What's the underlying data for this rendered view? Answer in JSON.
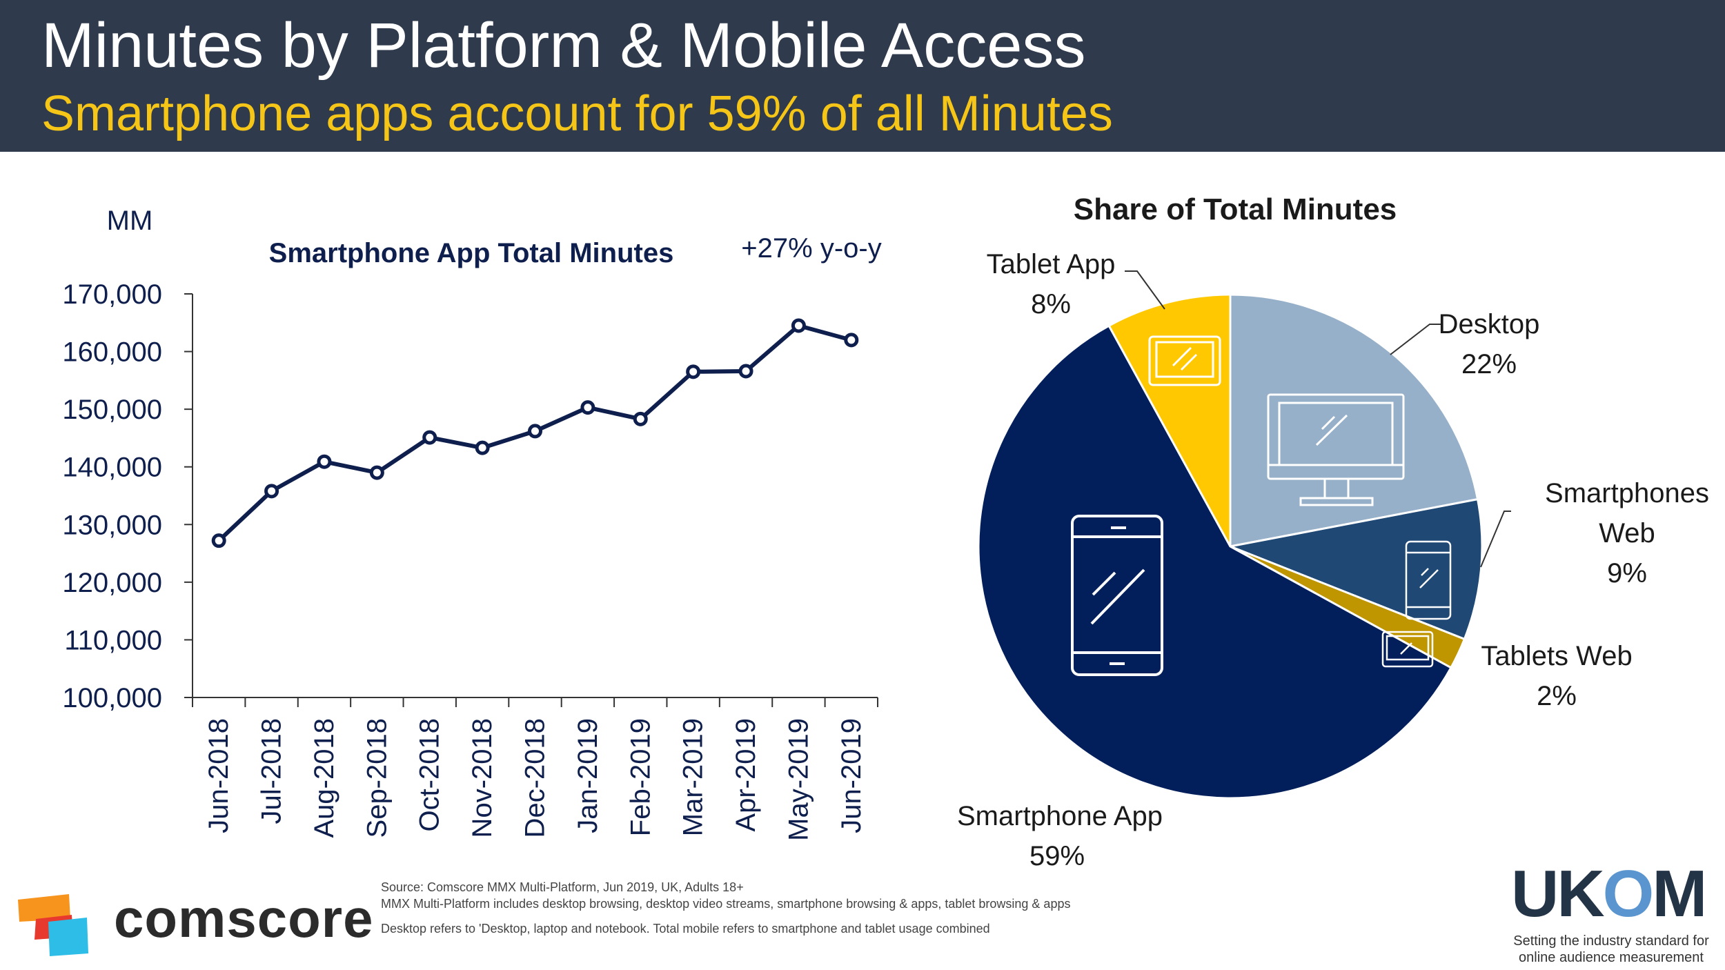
{
  "header": {
    "title": "Minutes by Platform & Mobile Access",
    "subtitle": "Smartphone apps account for 59% of all Minutes"
  },
  "line_chart": {
    "unit_label": "MM",
    "title": "Smartphone App Total Minutes",
    "growth_label": "+27% y-o-y"
  },
  "pie_chart": {
    "title": "Share of Total Minutes"
  },
  "chart_data": [
    {
      "type": "line",
      "title": "Smartphone App Total Minutes",
      "ylabel": "MM",
      "ylim": [
        100000,
        170000
      ],
      "yticks": [
        100000,
        110000,
        120000,
        130000,
        140000,
        150000,
        160000,
        170000
      ],
      "ytick_labels": [
        "100,000",
        "110,000",
        "120,000",
        "130,000",
        "140,000",
        "150,000",
        "160,000",
        "170,000"
      ],
      "categories": [
        "Jun-2018",
        "Jul-2018",
        "Aug-2018",
        "Sep-2018",
        "Oct-2018",
        "Nov-2018",
        "Dec-2018",
        "Jan-2019",
        "Feb-2019",
        "Mar-2019",
        "Apr-2019",
        "May-2019",
        "Jun-2019"
      ],
      "values": [
        127200,
        135800,
        140900,
        139000,
        145100,
        143300,
        146200,
        150300,
        148300,
        156500,
        156600,
        164500,
        162000
      ],
      "annotation": "+27% y-o-y",
      "color": "#0f1f4d"
    },
    {
      "type": "pie",
      "title": "Share of Total Minutes",
      "slices": [
        {
          "label": "Desktop",
          "value": 22,
          "display": "22%",
          "color": "#97b0c9"
        },
        {
          "label": "Smartphones Web",
          "value": 9,
          "display": "9%",
          "color": "#1f4874"
        },
        {
          "label": "Tablets Web",
          "value": 2,
          "display": "2%",
          "color": "#c09600"
        },
        {
          "label": "Smartphone App",
          "value": 59,
          "display": "59%",
          "color": "#021f5c"
        },
        {
          "label": "Tablet App",
          "value": 8,
          "display": "8%",
          "color": "#ffc800"
        }
      ]
    }
  ],
  "footer": {
    "brand": "comscore",
    "source_line": "Source: Comscore MMX Multi-Platform,  Jun 2019, UK, Adults 18+",
    "mmx_line": "MMX Multi-Platform includes desktop browsing, desktop video streams, smartphone browsing & apps, tablet browsing & apps",
    "desktop_note": "Desktop refers to 'Desktop, laptop and notebook. Total mobile refers to smartphone and tablet usage combined",
    "ukom_word_a": "UK",
    "ukom_word_o": "O",
    "ukom_word_b": "M",
    "ukom_tagline_1": "Setting the industry standard for",
    "ukom_tagline_2": "online audience measurement"
  }
}
